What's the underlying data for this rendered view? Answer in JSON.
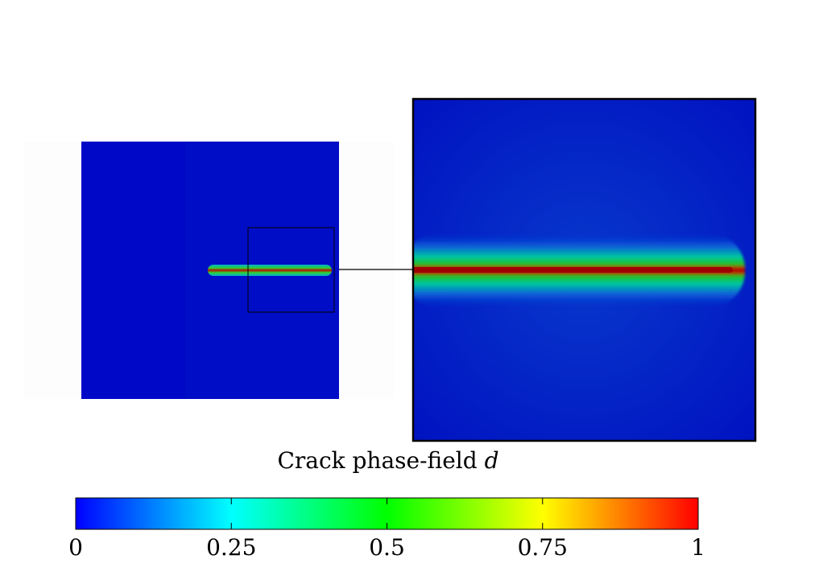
{
  "caption": {
    "text": "Crack phase-field",
    "variable": "d"
  },
  "colorbar": {
    "min": 0,
    "max": 1,
    "ticks": [
      {
        "value": 0,
        "label": "0"
      },
      {
        "value": 0.25,
        "label": "0.25"
      },
      {
        "value": 0.5,
        "label": "0.5"
      },
      {
        "value": 0.75,
        "label": "0.75"
      },
      {
        "value": 1,
        "label": "1"
      }
    ],
    "colormap": [
      "#0000ff",
      "#00ffff",
      "#00ff00",
      "#ffff00",
      "#ff0000"
    ]
  },
  "field": {
    "background_color": "#0010c8",
    "crack_core_color": "#b00000",
    "crack_halo_colors": [
      "#00c000",
      "#00e080",
      "#00a0e0"
    ]
  }
}
